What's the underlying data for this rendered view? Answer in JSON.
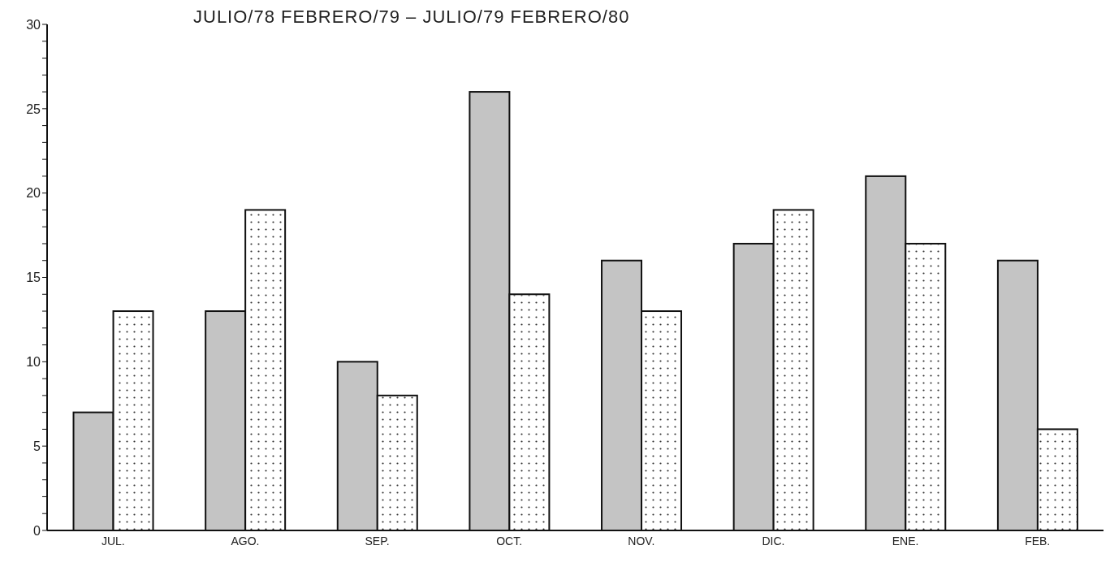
{
  "chart_data": {
    "type": "bar",
    "title": "JULIO/78 FEBRERO/79 – JULIO/79 FEBRERO/80",
    "categories": [
      "JUL.",
      "AGO.",
      "SEP.",
      "OCT.",
      "NOV.",
      "DIC.",
      "ENE.",
      "FEB."
    ],
    "series": [
      {
        "color": "#c4c4c4",
        "values": [
          7,
          13,
          10,
          26,
          16,
          17,
          21,
          16
        ]
      },
      {
        "color": "#ffffff",
        "values": [
          13,
          19,
          8,
          14,
          13,
          19,
          17,
          6
        ]
      }
    ],
    "ylim": [
      0,
      30
    ],
    "yticks": [
      0,
      {
        "value": 1,
        "label": null
      },
      {
        "value": 2,
        "label": null
      },
      {
        "value": 3,
        "label": null
      },
      {
        "value": 4,
        "label": null
      },
      5,
      {
        "value": 6,
        "label": null
      },
      {
        "value": 7,
        "label": null
      },
      {
        "value": 8,
        "label": null
      },
      {
        "value": 9,
        "label": null
      },
      10,
      {
        "value": 11,
        "label": null
      },
      {
        "value": 12,
        "label": null
      },
      {
        "value": 13,
        "label": null
      },
      {
        "value": 14,
        "label": null
      },
      15,
      {
        "value": 16,
        "label": null
      },
      {
        "value": 17,
        "label": null
      },
      {
        "value": 18,
        "label": null
      },
      {
        "value": 19,
        "label": null
      },
      20,
      {
        "value": 21,
        "label": null
      },
      {
        "value": 22,
        "label": null
      },
      {
        "value": 23,
        "label": null
      },
      {
        "value": 24,
        "label": null
      },
      25,
      {
        "value": 26,
        "label": null
      },
      {
        "value": 27,
        "label": null
      },
      {
        "value": 28,
        "label": null
      },
      {
        "value": 29,
        "label": null
      },
      30
    ],
    "grid": false
  }
}
